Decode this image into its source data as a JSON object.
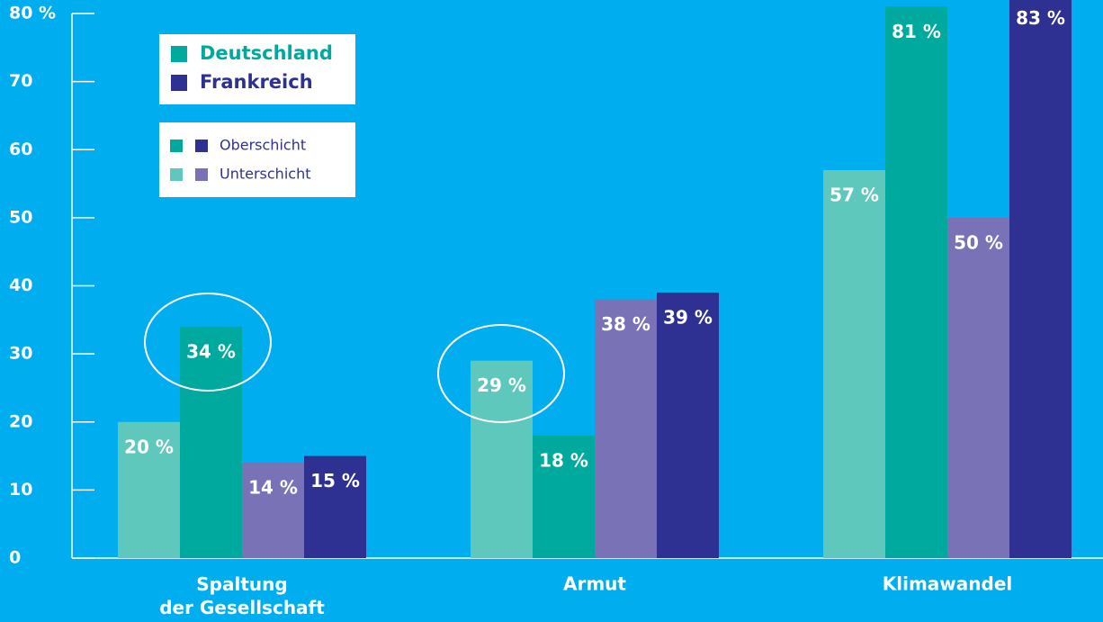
{
  "chart_data": {
    "type": "bar",
    "categories": [
      "Spaltung\nder Gesellschaft",
      "Armut",
      "Klimawandel"
    ],
    "series": [
      {
        "color": "#5ec8bd",
        "values": [
          20,
          29,
          57
        ],
        "value_labels": [
          "20 %",
          "29 %",
          "57 %"
        ]
      },
      {
        "color": "#00a99d",
        "values": [
          34,
          18,
          81
        ],
        "value_labels": [
          "34 %",
          "18 %",
          "81 %"
        ]
      },
      {
        "color": "#7a72b6",
        "values": [
          14,
          38,
          50
        ],
        "value_labels": [
          "14 %",
          "38 %",
          "50 %"
        ]
      },
      {
        "color": "#2e3192",
        "values": [
          15,
          39,
          83
        ],
        "value_labels": [
          "15 %",
          "39 %",
          "83 %"
        ]
      }
    ],
    "legend": {
      "countries": [
        {
          "name": "Deutschland",
          "color": "#00a99d"
        },
        {
          "name": "Frankreich",
          "color": "#2e3192"
        }
      ],
      "classes": [
        {
          "name": "Oberschicht",
          "colors": [
            "#00a99d",
            "#2e3192"
          ]
        },
        {
          "name": "Unterschicht",
          "colors": [
            "#5ec8bd",
            "#7a72b6"
          ]
        }
      ]
    },
    "ylim": [
      0,
      80
    ],
    "yticks": [
      0,
      10,
      20,
      30,
      40,
      50,
      60,
      70,
      {
        "value": 80,
        "label": "80 %"
      }
    ]
  }
}
